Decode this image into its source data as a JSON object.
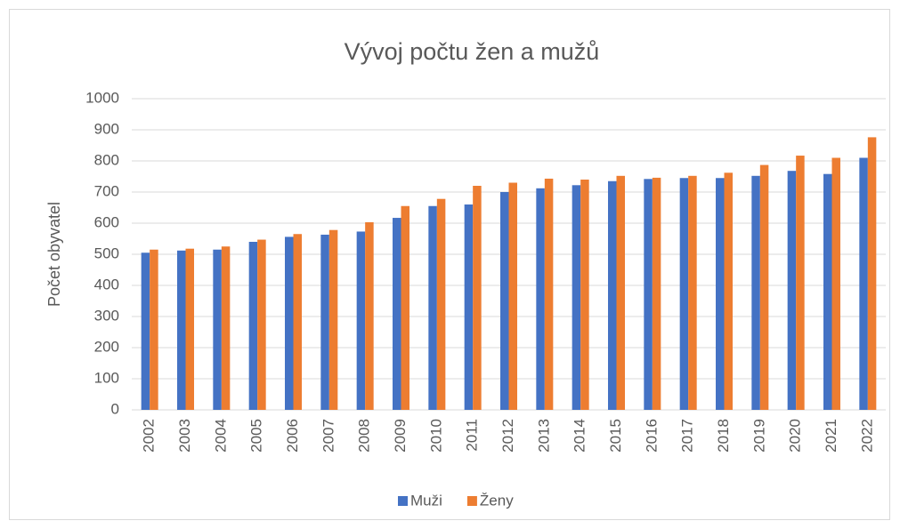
{
  "chart_data": {
    "type": "bar",
    "title": "Vývoj počtu žen a mužů",
    "y_label": "Počet obyvatel",
    "categories": [
      "2002",
      "2003",
      "2004",
      "2005",
      "2006",
      "2007",
      "2008",
      "2009",
      "2010",
      "2011",
      "2012",
      "2013",
      "2014",
      "2015",
      "2016",
      "2017",
      "2018",
      "2019",
      "2020",
      "2021",
      "2022"
    ],
    "series": [
      {
        "name": "Muži",
        "color": "#4472c4",
        "values": [
          505,
          512,
          515,
          540,
          556,
          563,
          573,
          617,
          655,
          660,
          700,
          712,
          722,
          735,
          742,
          745,
          745,
          752,
          768,
          758,
          810
        ]
      },
      {
        "name": "Ženy",
        "color": "#ed7d31",
        "values": [
          515,
          518,
          525,
          547,
          565,
          578,
          603,
          655,
          678,
          720,
          730,
          743,
          740,
          752,
          746,
          752,
          762,
          787,
          817,
          810,
          876
        ]
      }
    ],
    "ylim": [
      0,
      1000
    ],
    "yticks": [
      0,
      100,
      200,
      300,
      400,
      500,
      600,
      700,
      800,
      900,
      1000
    ],
    "grid": true,
    "legend": "bottom"
  }
}
